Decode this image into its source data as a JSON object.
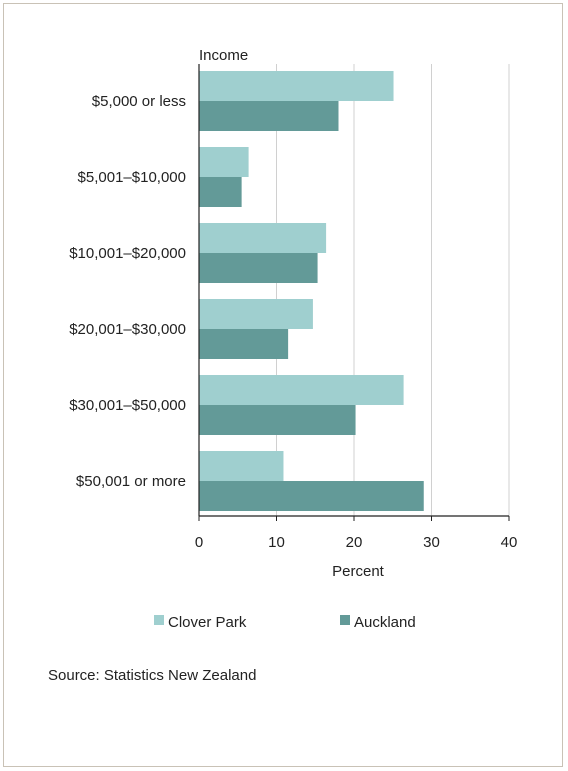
{
  "chart_data": {
    "type": "bar",
    "orientation": "horizontal",
    "y_axis_title": "Income",
    "categories": [
      "$5,000 or less",
      "$5,001–$10,000",
      "$10,001–$20,000",
      "$20,001–$30,000",
      "$30,001–$50,000",
      "$50,001 or more"
    ],
    "series": [
      {
        "name": "Clover Park",
        "color": "#9fcfcf",
        "values": [
          25.1,
          6.4,
          16.4,
          14.7,
          26.4,
          10.9
        ]
      },
      {
        "name": "Auckland",
        "color": "#639a98",
        "values": [
          18.0,
          5.5,
          15.3,
          11.5,
          20.2,
          29.0
        ]
      }
    ],
    "xlabel": "Percent",
    "xlim": [
      0,
      40
    ],
    "xticks": [
      0,
      10,
      20,
      30,
      40
    ],
    "grid": "vertical",
    "legend": "bottom"
  },
  "source": "Source: Statistics New Zealand"
}
